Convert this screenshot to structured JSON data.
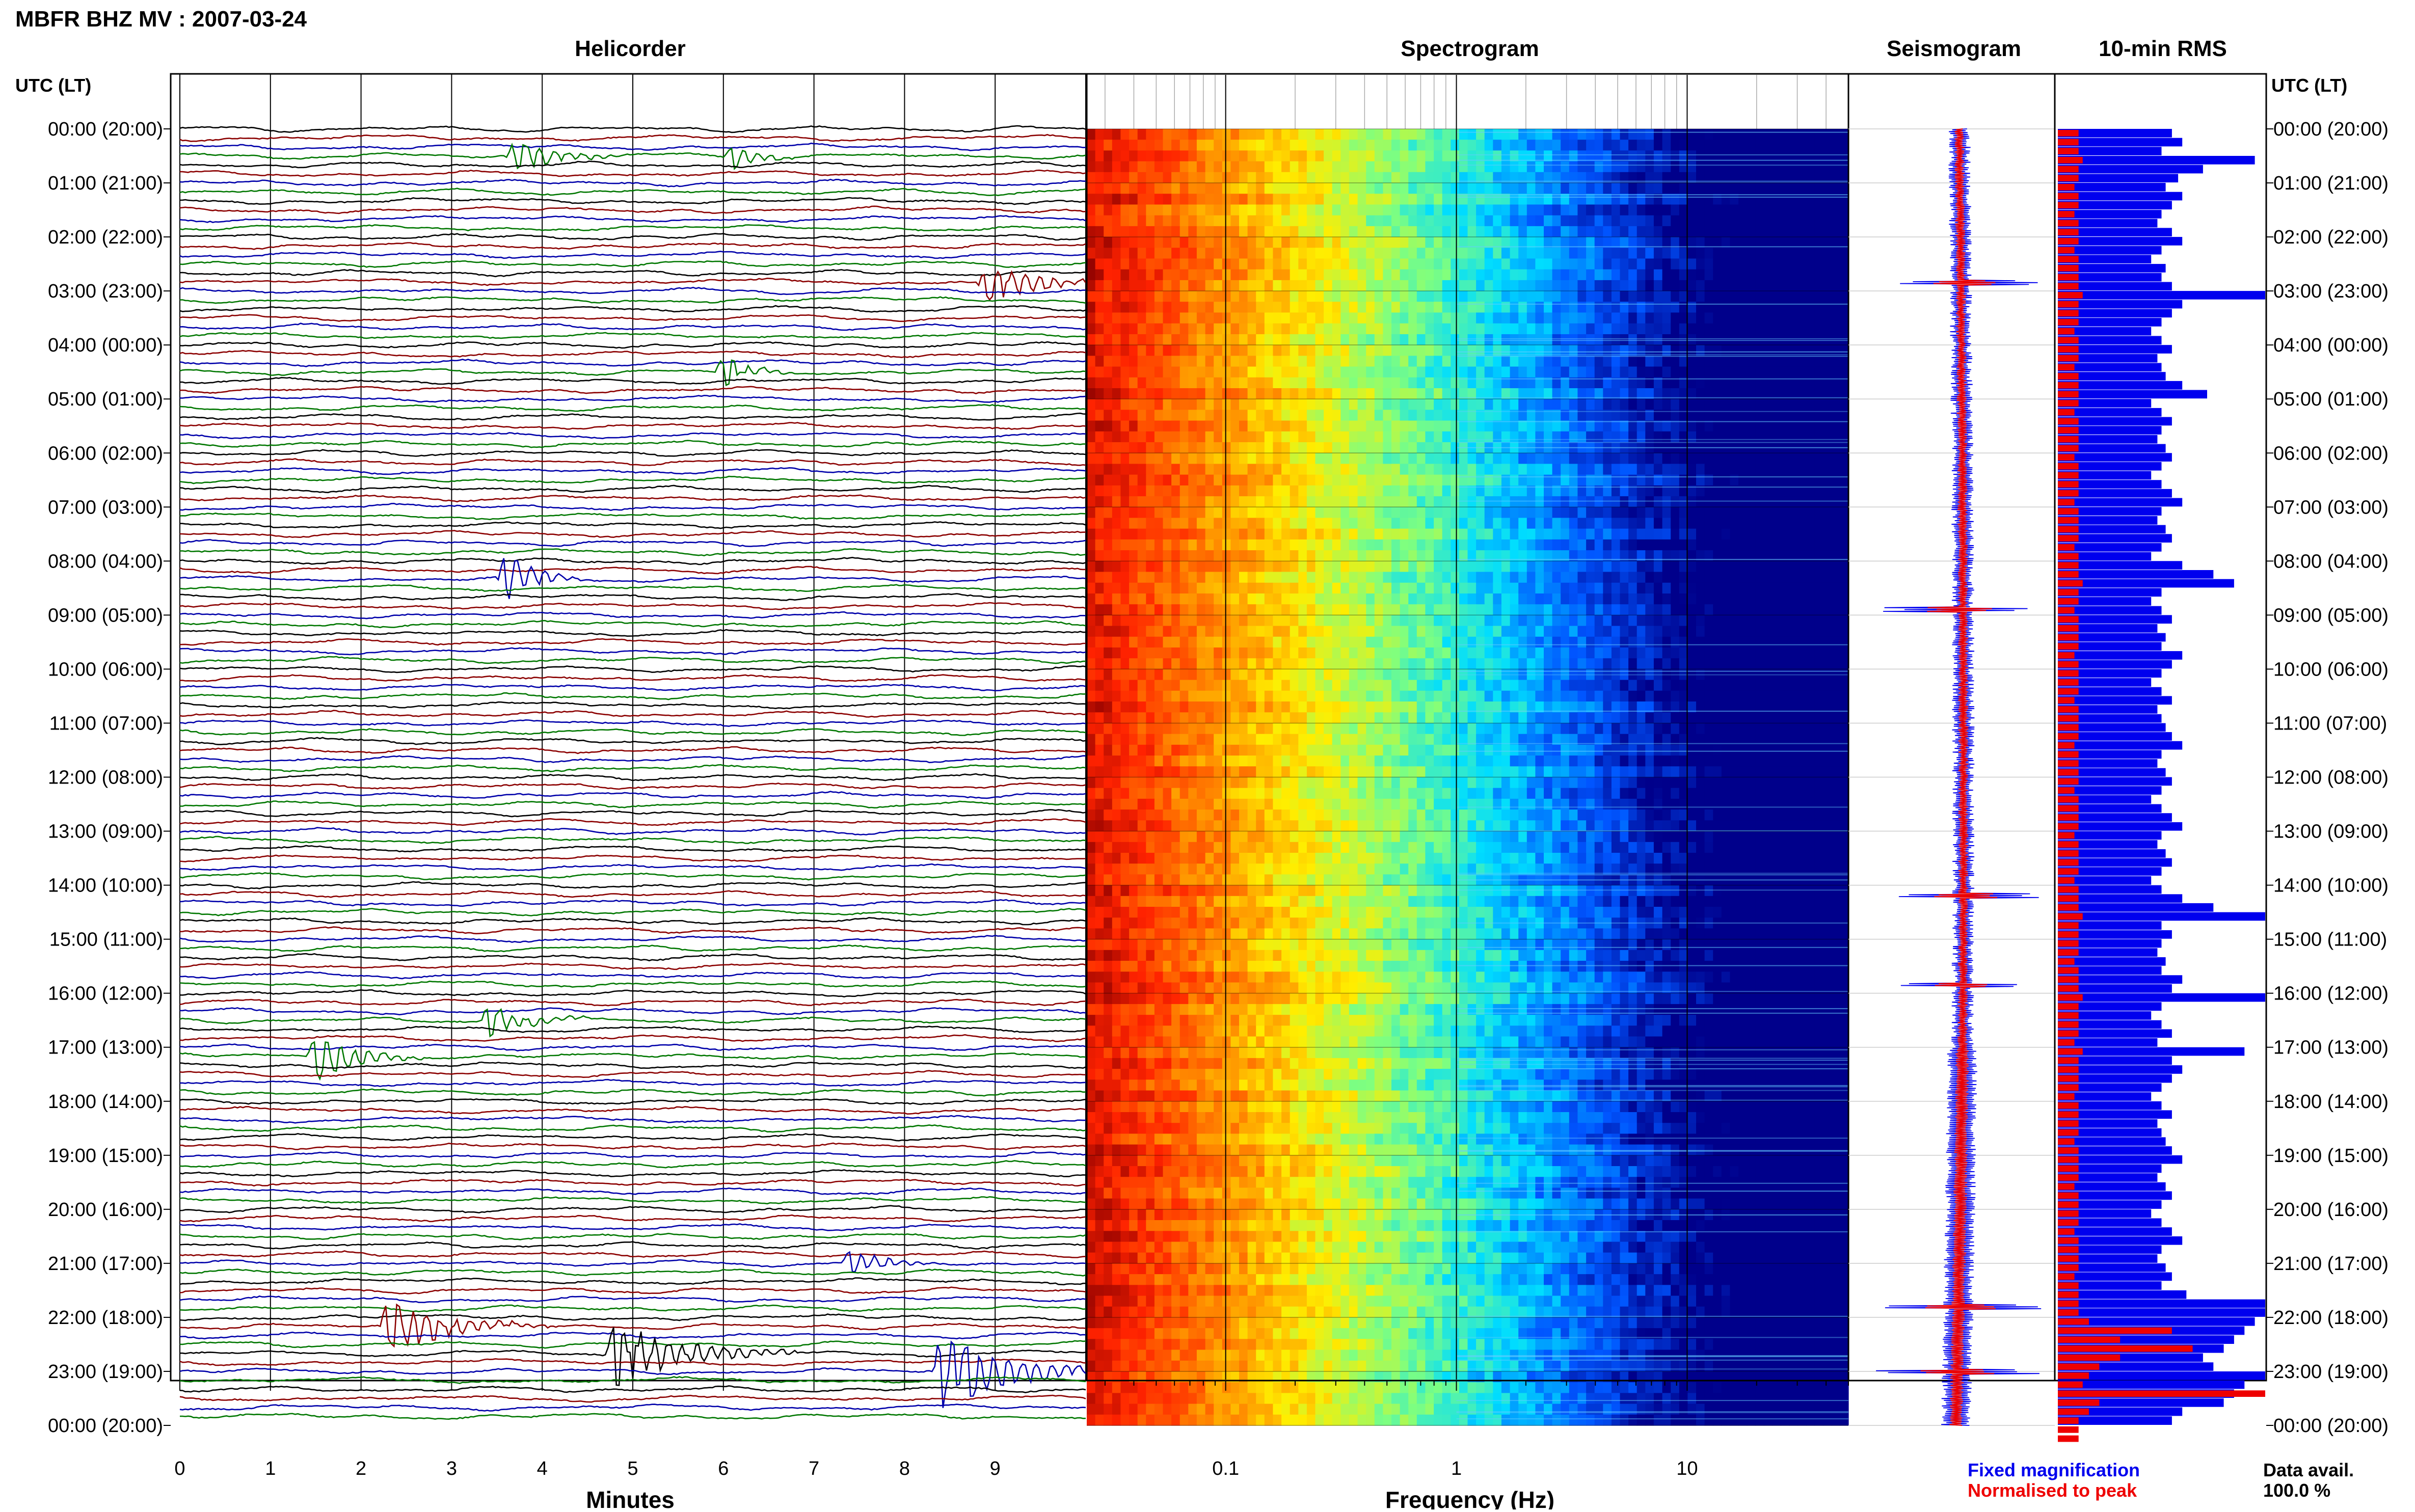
{
  "page_title": "MBFR BHZ MV : 2007-03-24",
  "panels": {
    "helicorder": "Helicorder",
    "spectrogram": "Spectrogram",
    "seismogram": "Seismogram",
    "rms": "10-min RMS"
  },
  "time_axis_header": "UTC (LT)",
  "time_labels": [
    "00:00 (20:00)",
    "01:00 (21:00)",
    "02:00 (22:00)",
    "03:00 (23:00)",
    "04:00 (00:00)",
    "05:00 (01:00)",
    "06:00 (02:00)",
    "07:00 (03:00)",
    "08:00 (04:00)",
    "09:00 (05:00)",
    "10:00 (06:00)",
    "11:00 (07:00)",
    "12:00 (08:00)",
    "13:00 (09:00)",
    "14:00 (10:00)",
    "15:00 (11:00)",
    "16:00 (12:00)",
    "17:00 (13:00)",
    "18:00 (14:00)",
    "19:00 (15:00)",
    "20:00 (16:00)",
    "21:00 (17:00)",
    "22:00 (18:00)",
    "23:00 (19:00)",
    "00:00 (20:00)"
  ],
  "legend": {
    "fixed": "Fixed magnification",
    "normalised": "Normalised to peak"
  },
  "data_avail": {
    "label": "Data avail.",
    "value": "100.0 %"
  },
  "colors": {
    "trace_cycle": [
      "#000000",
      "#8b0000",
      "#0000aa",
      "#007700"
    ],
    "rms_fixed": "#0000ee",
    "rms_norm": "#ee0000",
    "legend_fixed": "#0000ee",
    "legend_norm": "#ee0000"
  },
  "chart_data": [
    {
      "type": "line",
      "name": "Helicorder",
      "xlabel": "Minutes",
      "xlim": [
        0,
        10
      ],
      "x_ticks": [
        "0",
        "1",
        "2",
        "3",
        "4",
        "5",
        "6",
        "7",
        "8",
        "9"
      ],
      "rows": 144,
      "row_minutes": 10,
      "events": [
        {
          "row": 3,
          "minute": 3.7,
          "amp": 2.0,
          "dur": 1.2
        },
        {
          "row": 3,
          "minute": 6.1,
          "amp": 1.4,
          "dur": 0.8
        },
        {
          "row": 17,
          "minute": 8.9,
          "amp": 2.8,
          "dur": 1.5
        },
        {
          "row": 27,
          "minute": 6.0,
          "amp": 2.0,
          "dur": 0.8
        },
        {
          "row": 50,
          "minute": 3.6,
          "amp": 3.2,
          "dur": 0.9
        },
        {
          "row": 99,
          "minute": 3.4,
          "amp": 2.0,
          "dur": 1.2
        },
        {
          "row": 103,
          "minute": 1.5,
          "amp": 3.0,
          "dur": 1.2
        },
        {
          "row": 126,
          "minute": 7.4,
          "amp": 1.6,
          "dur": 1.0
        },
        {
          "row": 133,
          "minute": 2.3,
          "amp": 3.5,
          "dur": 1.8
        },
        {
          "row": 136,
          "minute": 4.8,
          "amp": 4.5,
          "dur": 2.0
        },
        {
          "row": 138,
          "minute": 8.4,
          "amp": 5.0,
          "dur": 2.0
        }
      ]
    },
    {
      "type": "heatmap",
      "name": "Spectrogram",
      "xlabel": "Frequency (Hz)",
      "xscale": "log",
      "xlim": [
        0.025,
        50
      ],
      "x_ticks": [
        {
          "value": 0.1,
          "label": "0.1"
        },
        {
          "value": 1,
          "label": "1"
        },
        {
          "value": 10,
          "label": "10"
        }
      ],
      "colormap": [
        "#8b0000",
        "#ff2200",
        "#ff8800",
        "#ffee00",
        "#7fff7f",
        "#00ddff",
        "#0055ff",
        "#00008b"
      ],
      "band_hot_below_hz": 0.05,
      "transition_hz": [
        0.08,
        5
      ]
    },
    {
      "type": "line",
      "name": "Seismogram",
      "series": [
        {
          "name": "Fixed magnification",
          "color": "#0000ee",
          "amplitude": "fixed"
        },
        {
          "name": "Normalised to peak",
          "color": "#ee0000",
          "amplitude": "normalised"
        }
      ],
      "spikes_hours": [
        2.85,
        8.9,
        14.2,
        15.85,
        21.8,
        23.0
      ]
    },
    {
      "type": "bar",
      "name": "10-min RMS",
      "orientation": "horizontal",
      "bins": 144,
      "series": [
        {
          "name": "Fixed magnification",
          "color": "#0000ee",
          "values": [
            0.55,
            0.6,
            0.5,
            0.95,
            0.7,
            0.58,
            0.52,
            0.6,
            0.55,
            0.5,
            0.48,
            0.55,
            0.6,
            0.5,
            0.45,
            0.52,
            0.5,
            0.55,
            1.0,
            0.6,
            0.55,
            0.5,
            0.45,
            0.5,
            0.55,
            0.48,
            0.5,
            0.52,
            0.6,
            0.72,
            0.45,
            0.5,
            0.55,
            0.5,
            0.48,
            0.52,
            0.55,
            0.5,
            0.45,
            0.5,
            0.55,
            0.6,
            0.5,
            0.48,
            0.52,
            0.55,
            0.5,
            0.45,
            0.6,
            0.75,
            0.85,
            0.5,
            0.45,
            0.5,
            0.55,
            0.48,
            0.52,
            0.5,
            0.6,
            0.55,
            0.5,
            0.45,
            0.5,
            0.55,
            0.48,
            0.5,
            0.52,
            0.55,
            0.6,
            0.5,
            0.48,
            0.52,
            0.55,
            0.5,
            0.45,
            0.5,
            0.55,
            0.6,
            0.5,
            0.48,
            0.52,
            0.55,
            0.5,
            0.45,
            0.5,
            0.6,
            0.75,
            1.0,
            0.5,
            0.55,
            0.5,
            0.48,
            0.52,
            0.5,
            0.6,
            0.55,
            1.0,
            0.5,
            0.45,
            0.5,
            0.55,
            0.48,
            0.9,
            0.55,
            0.6,
            0.55,
            0.5,
            0.45,
            0.5,
            0.55,
            0.48,
            0.5,
            0.52,
            0.55,
            0.6,
            0.5,
            0.48,
            0.52,
            0.55,
            0.5,
            0.45,
            0.5,
            0.55,
            0.6,
            0.5,
            0.48,
            0.52,
            0.55,
            0.5,
            0.62,
            1.0,
            1.0,
            0.95,
            0.9,
            0.85,
            0.8,
            0.7,
            0.75,
            1.0,
            0.9,
            0.85,
            0.8,
            0.6,
            0.55
          ]
        },
        {
          "name": "Normalised to peak",
          "color": "#ee0000",
          "values": [
            0.1,
            0.1,
            0.1,
            0.12,
            0.1,
            0.1,
            0.08,
            0.1,
            0.1,
            0.08,
            0.1,
            0.1,
            0.1,
            0.08,
            0.1,
            0.1,
            0.1,
            0.1,
            0.12,
            0.1,
            0.1,
            0.1,
            0.08,
            0.1,
            0.1,
            0.1,
            0.08,
            0.1,
            0.1,
            0.1,
            0.1,
            0.08,
            0.1,
            0.1,
            0.1,
            0.1,
            0.08,
            0.1,
            0.1,
            0.1,
            0.1,
            0.08,
            0.1,
            0.1,
            0.1,
            0.1,
            0.08,
            0.1,
            0.1,
            0.1,
            0.12,
            0.1,
            0.1,
            0.08,
            0.1,
            0.1,
            0.1,
            0.1,
            0.08,
            0.1,
            0.1,
            0.1,
            0.1,
            0.08,
            0.1,
            0.1,
            0.1,
            0.1,
            0.08,
            0.1,
            0.1,
            0.1,
            0.1,
            0.08,
            0.1,
            0.1,
            0.1,
            0.1,
            0.08,
            0.1,
            0.1,
            0.1,
            0.1,
            0.08,
            0.1,
            0.1,
            0.1,
            0.12,
            0.1,
            0.1,
            0.1,
            0.1,
            0.08,
            0.1,
            0.1,
            0.1,
            0.12,
            0.1,
            0.1,
            0.1,
            0.1,
            0.08,
            0.12,
            0.1,
            0.1,
            0.1,
            0.1,
            0.08,
            0.1,
            0.1,
            0.1,
            0.1,
            0.08,
            0.1,
            0.1,
            0.1,
            0.1,
            0.08,
            0.1,
            0.1,
            0.1,
            0.1,
            0.08,
            0.1,
            0.1,
            0.1,
            0.1,
            0.08,
            0.1,
            0.1,
            0.1,
            0.1,
            0.15,
            0.55,
            0.3,
            0.65,
            0.3,
            0.2,
            0.15,
            0.12,
            1.0,
            0.2,
            0.15,
            0.1,
            0.1,
            0.1
          ]
        }
      ]
    }
  ]
}
